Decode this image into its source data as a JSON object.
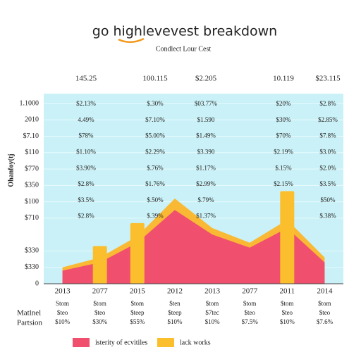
{
  "chart_data": {
    "type": "combo",
    "title": "go highlevevest breakdown",
    "subtitle": "Condlect Lour Cest",
    "y_label": "Ohanfoy(tj",
    "column_headers": [
      "145.25",
      "100.115",
      "$2.205",
      "10.119",
      "$23.115"
    ],
    "cell_rows": [
      [
        "$2.13%",
        "$.30%",
        "$03.77%",
        "$20%",
        "$2.8%"
      ],
      [
        "4.49%",
        "$7.10%",
        "$1.590",
        "$30%",
        "$2.85%"
      ],
      [
        "$78%",
        "$5.00%",
        "$1.49%",
        "$70%",
        "$7.8%"
      ],
      [
        "$1.10%",
        "$2.29%",
        "$3.390",
        "$2.19%",
        "$3.0%"
      ],
      [
        "$3.90%",
        "$.76%",
        "$1.17%",
        "$.15%",
        "$2.0%"
      ],
      [
        "$2.8%",
        "$1.76%",
        "$2.99%",
        "$2.15%",
        "$3.5%"
      ],
      [
        "$3.5%",
        "$.50%",
        "$.79%",
        null,
        "$50%"
      ],
      [
        "$2.8%",
        "$.39%",
        "$1.37%",
        null,
        "$.38%"
      ]
    ],
    "categories": [
      "2013",
      "2077",
      "2015",
      "2012",
      "2013",
      "2077",
      "2011",
      "2014"
    ],
    "series": [
      {
        "type": "area",
        "color": "#f9b934",
        "values": [
          1.0,
          1.6,
          2.9,
          5.2,
          3.4,
          2.5,
          3.9,
          1.6
        ]
      },
      {
        "type": "area",
        "name": "isterity of ecvitiles",
        "color": "#f0506e",
        "values": [
          0.8,
          1.3,
          2.5,
          4.5,
          3.0,
          2.2,
          3.4,
          1.3
        ]
      },
      {
        "type": "bar",
        "name": "lack works",
        "color": "#fbbf2e",
        "values": [
          null,
          2.3,
          3.7,
          null,
          null,
          null,
          5.65,
          null
        ]
      }
    ],
    "row_labels": [
      "Matlnel",
      "Partsion"
    ],
    "bottom_rows": [
      [
        "Stom",
        "$tom",
        "$tom",
        "$ten",
        "$tom",
        "$tom",
        "$tom",
        "$tom"
      ],
      [
        "$teo",
        "$teo",
        "$teep",
        "$teep",
        "$7tec",
        "$teo",
        "$teo",
        "$teo"
      ],
      [
        "$10%",
        "$30%",
        "$55%",
        "$10%",
        "$10%",
        "$7.5%",
        "$10%",
        "$7.6%"
      ]
    ],
    "ylim": [
      0,
      11.6
    ],
    "yticks": [
      0,
      {
        "value": 1,
        "label": "$330"
      },
      {
        "value": 2,
        "label": "$330"
      },
      {
        "value": 4,
        "label": "$710"
      },
      {
        "value": 5,
        "label": "$100"
      },
      {
        "value": 6,
        "label": "$350"
      },
      {
        "value": 7,
        "label": "$770"
      },
      {
        "value": 8,
        "label": "$110"
      },
      {
        "value": 9,
        "label": "$7.10"
      },
      {
        "value": 10,
        "label": "2010"
      },
      {
        "value": 11,
        "label": "1.1000"
      }
    ],
    "grid": true
  }
}
